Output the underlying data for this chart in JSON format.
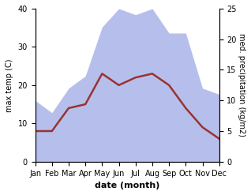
{
  "months": [
    "Jan",
    "Feb",
    "Mar",
    "Apr",
    "May",
    "Jun",
    "Jul",
    "Aug",
    "Sep",
    "Oct",
    "Nov",
    "Dec"
  ],
  "temp_max": [
    8,
    8,
    14,
    15,
    23,
    20,
    22,
    23,
    20,
    14,
    9,
    6
  ],
  "precipitation": [
    10,
    8,
    12,
    14,
    22,
    25,
    24,
    25,
    21,
    21,
    12,
    11
  ],
  "temp_color": "#993333",
  "precip_color": "#aab4e8",
  "xlabel": "date (month)",
  "ylabel_left": "max temp (C)",
  "ylabel_right": "med. precipitation (kg/m2)",
  "ylim_left": [
    0,
    40
  ],
  "ylim_right": [
    0,
    25
  ],
  "yticks_left": [
    0,
    10,
    20,
    30,
    40
  ],
  "yticks_right": [
    0,
    5,
    10,
    15,
    20,
    25
  ],
  "background_color": "#ffffff",
  "linewidth": 1.8,
  "figsize": [
    3.18,
    2.47
  ],
  "dpi": 100,
  "scale_factor": 1.6
}
